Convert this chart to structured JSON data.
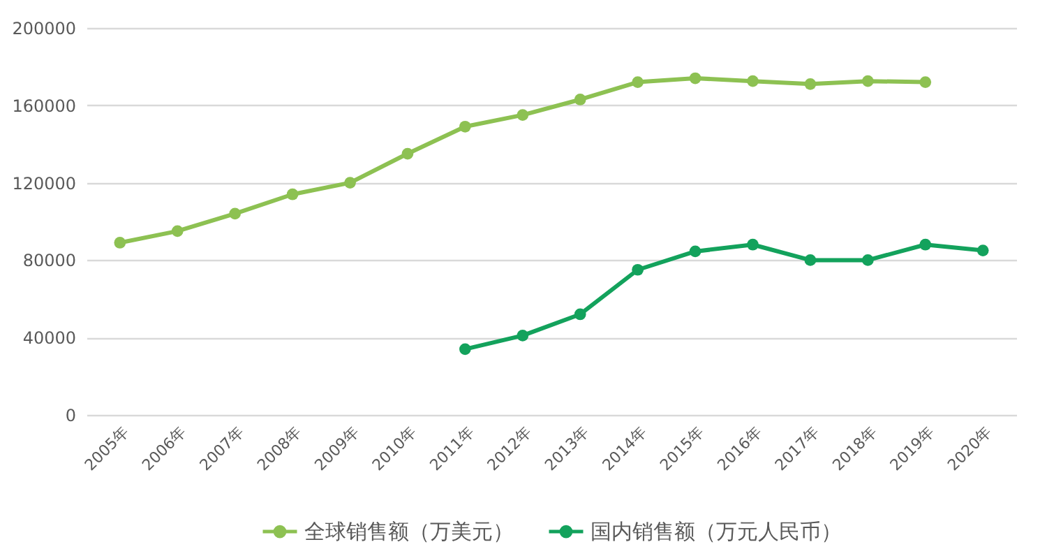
{
  "chart_data": {
    "type": "line",
    "categories": [
      "2005年",
      "2006年",
      "2007年",
      "2008年",
      "2009年",
      "2010年",
      "2011年",
      "2012年",
      "2013年",
      "2014年",
      "2015年",
      "2016年",
      "2017年",
      "2018年",
      "2019年",
      "2020年"
    ],
    "series": [
      {
        "name": "全球销售额（万美元）",
        "color": "#8dc152",
        "values": [
          89000,
          95000,
          104000,
          114000,
          120000,
          135000,
          149000,
          155000,
          163000,
          172000,
          174000,
          172500,
          171000,
          172500,
          172000,
          null
        ]
      },
      {
        "name": "国内销售额（万元人民币）",
        "color": "#13a25c",
        "values": [
          null,
          null,
          null,
          null,
          null,
          null,
          34000,
          41000,
          52000,
          75000,
          84500,
          88000,
          80000,
          80000,
          88000,
          85000
        ]
      }
    ],
    "ylim": [
      0,
      200000
    ],
    "yticks": [
      0,
      40000,
      80000,
      120000,
      160000,
      200000
    ],
    "grid": "y",
    "legend": "bottom",
    "marker": "circle"
  }
}
